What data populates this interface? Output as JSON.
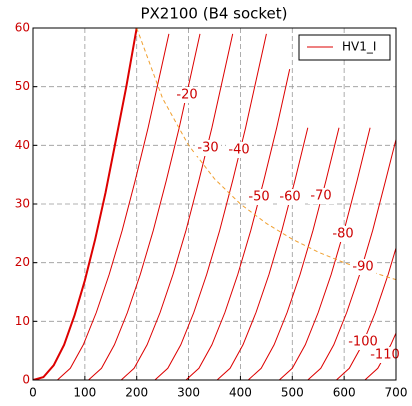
{
  "chart_data": {
    "type": "line",
    "title": "PX2100 (B4 socket)",
    "xlim": [
      0,
      700
    ],
    "ylim": [
      0,
      60
    ],
    "xticks": [
      0,
      100,
      200,
      300,
      400,
      500,
      600,
      700
    ],
    "yticks": [
      0,
      10,
      20,
      30,
      40,
      50,
      60
    ],
    "grid": true,
    "legend": "upper right",
    "series": [
      {
        "name": "HV1_I",
        "color": "#dd0000",
        "linewidth": 2,
        "x": [
          0,
          20,
          40,
          60,
          80,
          100,
          120,
          140,
          160,
          180,
          200
        ],
        "values": [
          0,
          0.5,
          2.5,
          6,
          11,
          17,
          24,
          32,
          41,
          50,
          60
        ]
      },
      {
        "color": "#dd0000",
        "x": [
          47,
          72,
          97,
          122,
          147,
          172,
          197,
          222,
          247,
          262
        ],
        "values": [
          0,
          2,
          6,
          11.5,
          18,
          25.5,
          34,
          43,
          53,
          59
        ]
      },
      {
        "label": "-20",
        "color": "#dd0000",
        "x": [
          107,
          132,
          157,
          182,
          207,
          232,
          257,
          282,
          307,
          322
        ],
        "values": [
          0,
          2,
          6,
          11.5,
          18,
          25.5,
          34,
          43,
          53,
          59
        ]
      },
      {
        "label": "-30",
        "color": "#dd0000",
        "x": [
          170,
          195,
          220,
          245,
          270,
          295,
          320,
          345,
          370,
          385
        ],
        "values": [
          0,
          2,
          6,
          11.5,
          18,
          25.5,
          34,
          43,
          53,
          59
        ]
      },
      {
        "label": "-40",
        "color": "#dd0000",
        "x": [
          235,
          260,
          285,
          310,
          335,
          360,
          385,
          410,
          435,
          450
        ],
        "values": [
          0,
          2,
          6,
          11.5,
          18,
          25.5,
          34,
          43,
          53,
          59
        ]
      },
      {
        "label": "-50",
        "color": "#dd0000",
        "x": [
          295,
          320,
          345,
          370,
          395,
          420,
          445,
          470,
          495
        ],
        "values": [
          0,
          2,
          6,
          11.5,
          18,
          25.5,
          34,
          43,
          53
        ]
      },
      {
        "label": "-60",
        "color": "#dd0000",
        "x": [
          355,
          380,
          405,
          430,
          455,
          480,
          505,
          530
        ],
        "values": [
          0,
          2,
          6,
          11.5,
          18,
          25.5,
          34,
          43
        ]
      },
      {
        "label": "-70",
        "color": "#dd0000",
        "x": [
          415,
          440,
          465,
          490,
          515,
          540,
          565,
          590
        ],
        "values": [
          0,
          2,
          6,
          11.5,
          18,
          25.5,
          34,
          43
        ]
      },
      {
        "label": "-80",
        "color": "#dd0000",
        "x": [
          475,
          500,
          525,
          550,
          575,
          600,
          625,
          650
        ],
        "values": [
          0,
          2,
          6,
          11.5,
          18,
          25.5,
          34,
          43
        ]
      },
      {
        "label": "-90",
        "color": "#dd0000",
        "x": [
          530,
          555,
          580,
          605,
          630,
          655,
          680,
          700
        ],
        "values": [
          0,
          2,
          6,
          11.5,
          18,
          25.5,
          34,
          41
        ]
      },
      {
        "label": "-100",
        "color": "#dd0000",
        "x": [
          585,
          610,
          635,
          660,
          685,
          700
        ],
        "values": [
          0,
          2,
          6,
          11.5,
          18,
          22.5
        ]
      },
      {
        "label": "-110",
        "color": "#dd0000",
        "x": [
          640,
          665,
          690,
          700
        ],
        "values": [
          0,
          2,
          6,
          8
        ]
      },
      {
        "color": "#f0a030",
        "dashed": true,
        "x": [
          200,
          250,
          300,
          350,
          400,
          450,
          500,
          550,
          600,
          650,
          700
        ],
        "values": [
          60,
          48,
          40,
          34.3,
          30,
          26.7,
          24,
          21.8,
          20,
          18.5,
          17.1
        ]
      }
    ]
  }
}
